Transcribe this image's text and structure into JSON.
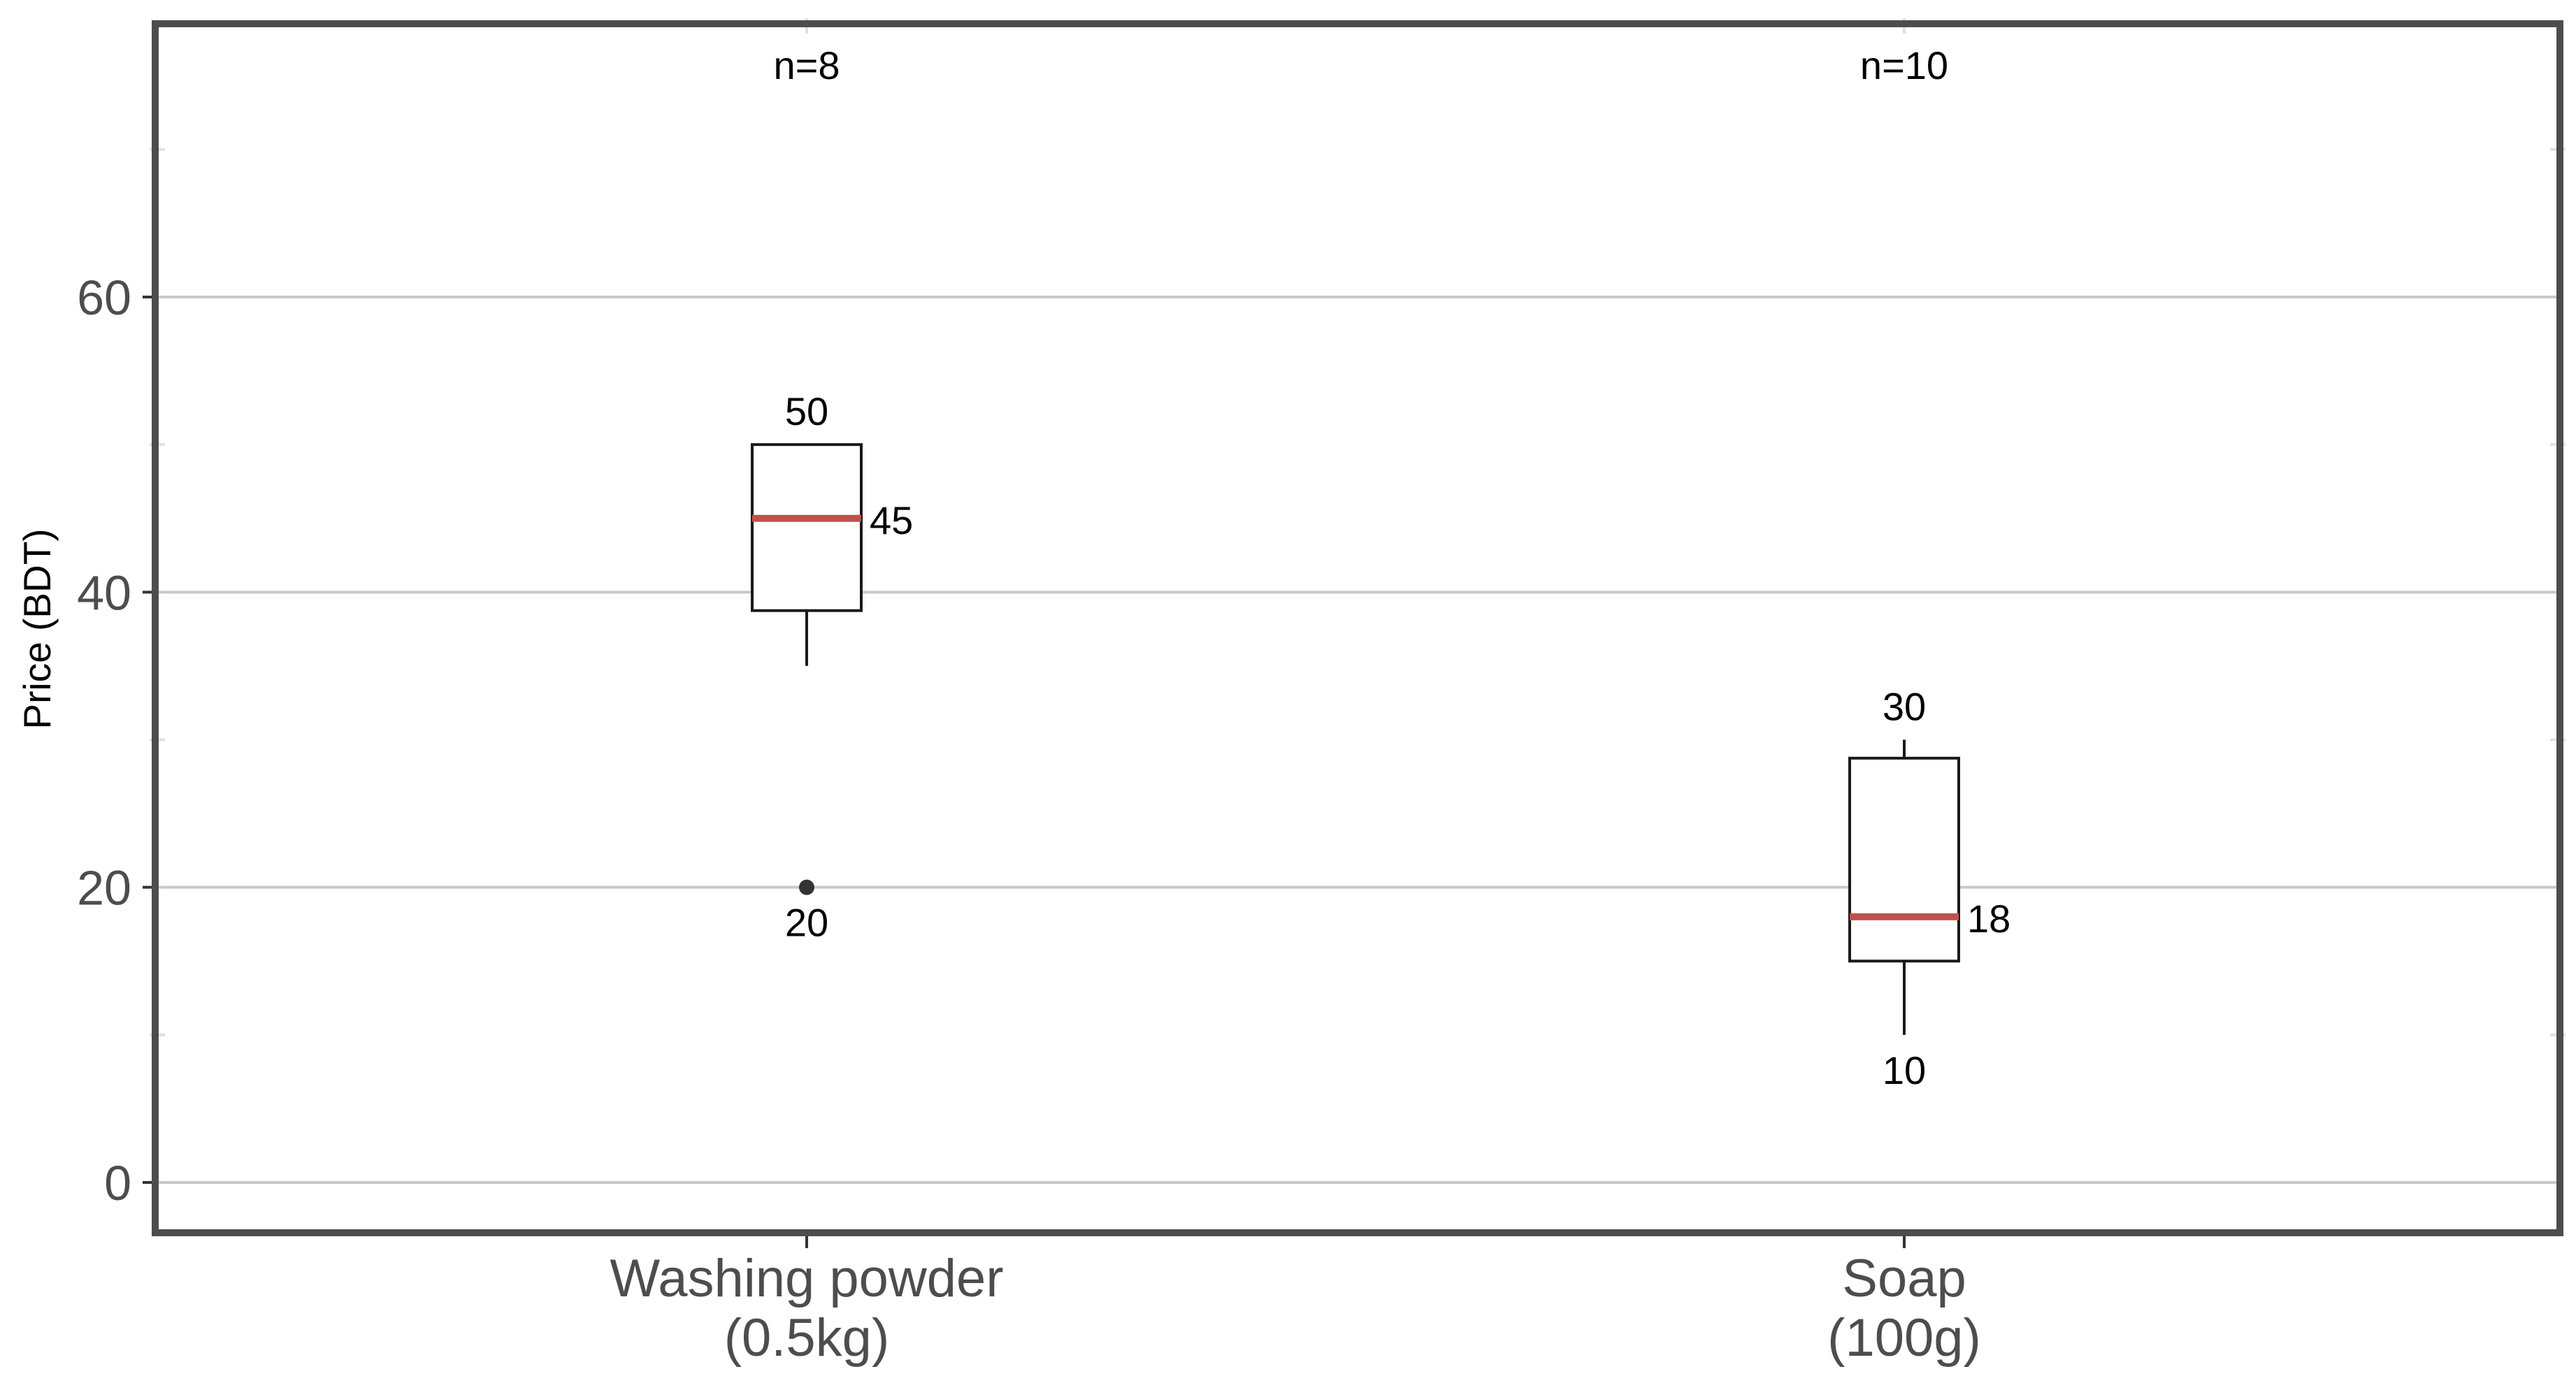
{
  "chart_data": {
    "type": "box",
    "ylabel": "Price (BDT)",
    "xlabel": "",
    "ylim": [
      -3.5,
      78.5
    ],
    "yticks": [
      0,
      20,
      40,
      60
    ],
    "grid": {
      "horizontal_major": true,
      "vertical": false
    },
    "categories": [
      {
        "label_line1": "Washing powder",
        "label_line2": "(0.5kg)",
        "n_label": "n=8",
        "q1": 38.75,
        "median": 45,
        "q3": 50,
        "whisker_low": 35,
        "whisker_high": 50,
        "outliers": [
          20
        ],
        "annotations": [
          {
            "text": "50",
            "value": 50,
            "pos": "above"
          },
          {
            "text": "45",
            "value": 45,
            "pos": "right"
          },
          {
            "text": "20",
            "value": 20,
            "pos": "below"
          }
        ]
      },
      {
        "label_line1": "Soap",
        "label_line2": "(100g)",
        "n_label": "n=10",
        "q1": 15,
        "median": 18,
        "q3": 28.75,
        "whisker_low": 10,
        "whisker_high": 30,
        "outliers": [],
        "annotations": [
          {
            "text": "30",
            "value": 30,
            "pos": "above"
          },
          {
            "text": "18",
            "value": 18,
            "pos": "right"
          },
          {
            "text": "10",
            "value": 10,
            "pos": "below"
          }
        ]
      }
    ],
    "colors": {
      "median": "#c0504d",
      "box_stroke": "#1a1a1a",
      "grid": "#c8c8c8",
      "frame": "#4d4d4d",
      "outlier": "#333333"
    }
  }
}
